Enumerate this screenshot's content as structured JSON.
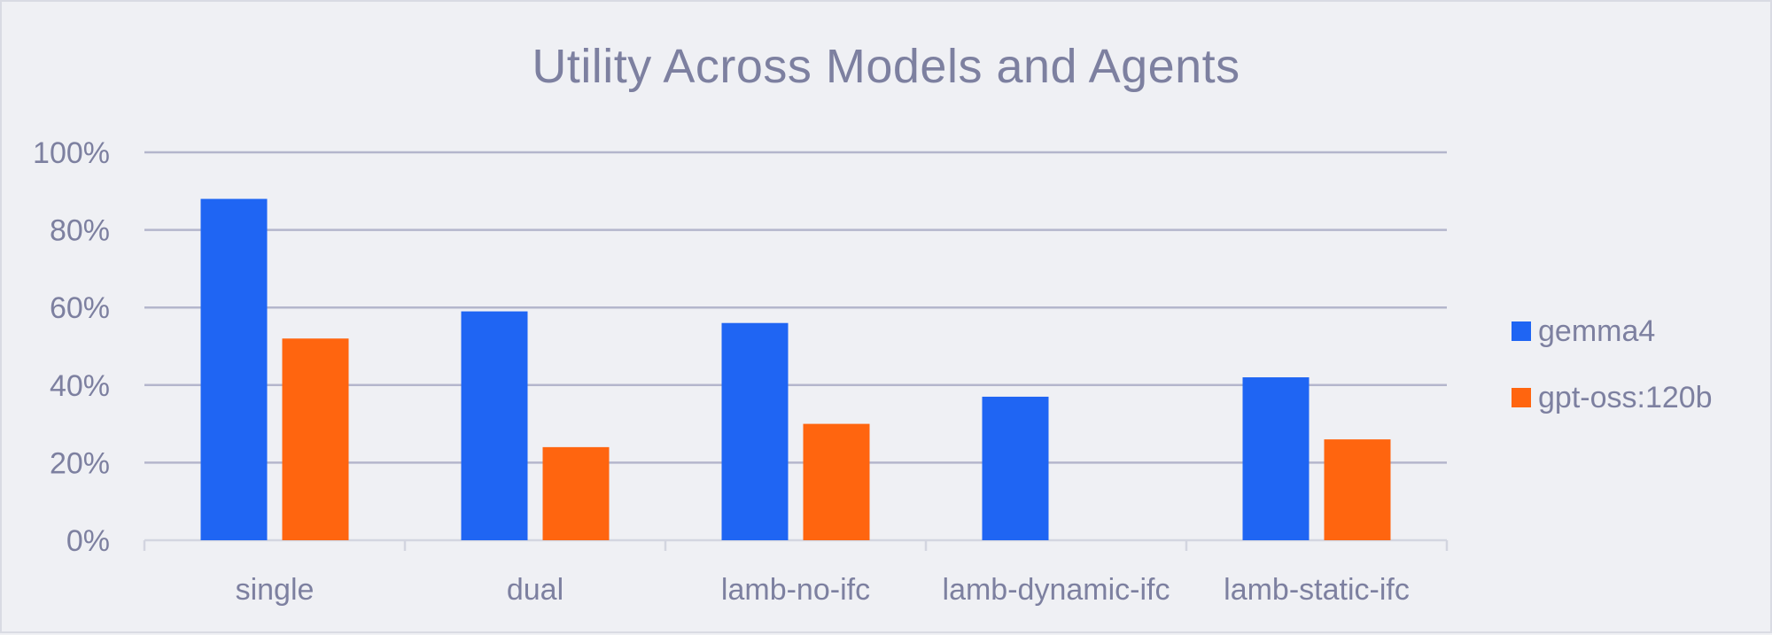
{
  "chart_data": {
    "type": "bar",
    "title": "Utility Across Models and Agents",
    "xlabel": "",
    "ylabel": "",
    "ylim": [
      0,
      100
    ],
    "yticks": [
      "0%",
      "20%",
      "40%",
      "60%",
      "80%",
      "100%"
    ],
    "grid": true,
    "legend_position": "right",
    "categories": [
      "single",
      "dual",
      "lamb-no-ifc",
      "lamb-dynamic-ifc",
      "lamb-static-ifc"
    ],
    "series": [
      {
        "name": "gemma4",
        "color": "#1f65f3",
        "values": [
          88,
          59,
          56,
          37,
          42
        ]
      },
      {
        "name": "gpt-oss:120b",
        "color": "#ff650f",
        "values": [
          52,
          24,
          30,
          null,
          26
        ]
      }
    ]
  }
}
